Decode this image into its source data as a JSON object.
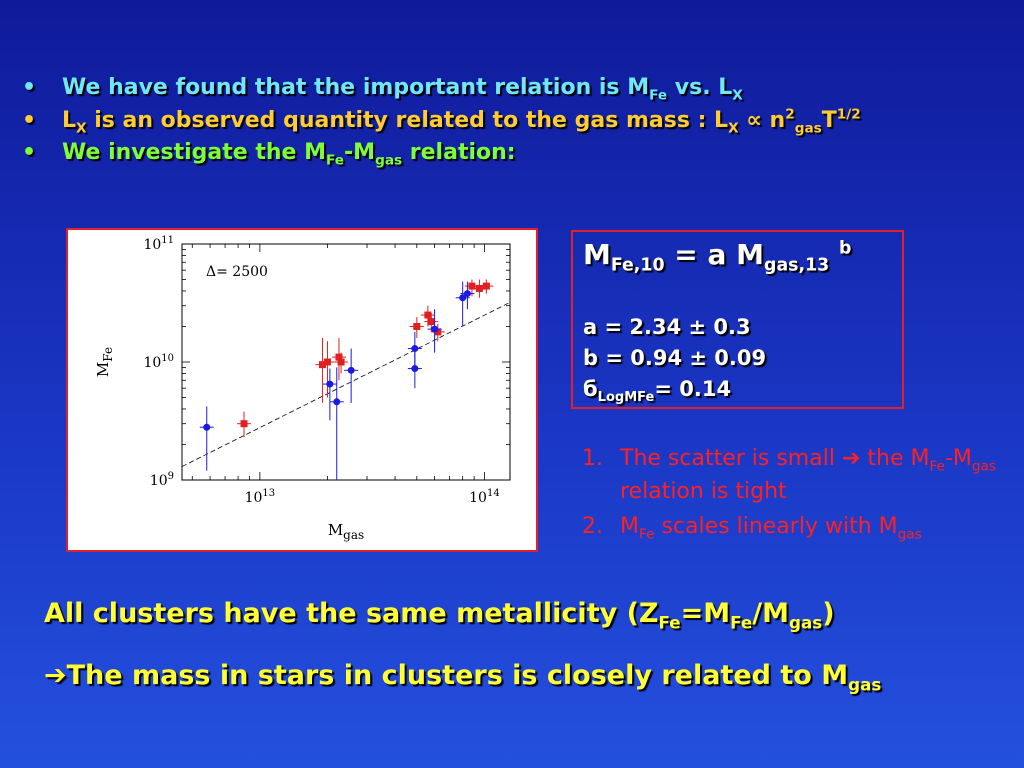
{
  "bullets": [
    {
      "text": "We have found that the important relation is  M",
      "sub": "Fe",
      "text2": " vs. L",
      "sub2": "X"
    },
    {
      "a": "L",
      "a_sub": "X",
      "b": " is an observed quantity related to the gas mass :  L",
      "b_sub": "X",
      "c": " ∝ n",
      "c_sup": "2",
      "c_sub": "gas",
      "d": "T",
      "d_sup": "1/2"
    },
    {
      "a": "We investigate the M",
      "a_sub": "Fe",
      "b": "-M",
      "b_sub": "gas",
      "c": " relation:"
    }
  ],
  "bullet_symbol": "•",
  "formula": {
    "lhs": "M",
    "lhs_sub": "Fe,10",
    "mid": " = a M",
    "mid_sub": "gas,13",
    "exp": "b"
  },
  "params": {
    "a": "a = 2.34 ± 0.3",
    "b": "b = 0.94 ± 0.09",
    "sigma": "б",
    "sigma_sub": "LogMFe",
    "sigma_val": "= 0.14"
  },
  "numbered": [
    {
      "num": "1.",
      "t1": "The scatter is small ",
      "arrow": "➔",
      "t2": " the M",
      "s1": "Fe",
      "t3": "-M",
      "s2": "gas",
      "t4": " relation is tight"
    },
    {
      "num": "2.",
      "t1": "M",
      "s1": "Fe",
      "t2": " scales linearly with M",
      "s2": "gas"
    }
  ],
  "conclusion": {
    "line1": {
      "a": "All clusters have the same metallicity (Z",
      "s1": "Fe",
      "b": "=M",
      "s2": "Fe",
      "c": "/M",
      "s3": "gas",
      "d": ")"
    },
    "line2": {
      "arrow": "➔",
      "a": "The mass in stars in clusters is closely related to M",
      "s1": "gas"
    }
  },
  "colors": {
    "red_points": "#e02020",
    "blue_points": "#1a1ae0",
    "border": "#e0202a"
  },
  "chart_data": {
    "type": "scatter",
    "annotation": "Δ=  2500",
    "xlabel": "M",
    "xlabel_sub": "gas",
    "ylabel": "M",
    "ylabel_sub": "Fe",
    "x_scale": "log",
    "y_scale": "log",
    "xlim": [
      4500000000000.0,
      130000000000000.0
    ],
    "ylim": [
      1000000000.0,
      100000000000.0
    ],
    "x_ticks": [
      {
        "base": "10",
        "exp": "13",
        "value": 10000000000000.0
      },
      {
        "base": "10",
        "exp": "14",
        "value": 100000000000000.0
      }
    ],
    "y_ticks": [
      {
        "base": "10",
        "exp": "9",
        "value": 1000000000.0
      },
      {
        "base": "10",
        "exp": "10",
        "value": 10000000000.0
      },
      {
        "base": "10",
        "exp": "11",
        "value": 100000000000.0
      }
    ],
    "fit_line": {
      "x": [
        4500000000000.0,
        130000000000000.0
      ],
      "y": [
        1300000000.0,
        32000000000.0
      ]
    },
    "series": [
      {
        "color": "red",
        "points": [
          {
            "x": 8500000000000.0,
            "y": 3000000000.0,
            "ylo": 2300000000.0,
            "yhi": 3800000000.0
          },
          {
            "x": 19000000000000.0,
            "y": 9500000000.0,
            "ylo": 4500000000.0,
            "yhi": 16000000000.0
          },
          {
            "x": 20000000000000.0,
            "y": 10000000000.0,
            "ylo": 5000000000.0,
            "yhi": 15000000000.0
          },
          {
            "x": 22500000000000.0,
            "y": 11000000000.0,
            "ylo": 7000000000.0,
            "yhi": 16000000000.0
          },
          {
            "x": 23000000000000.0,
            "y": 10000000000.0,
            "ylo": 8000000000.0,
            "yhi": 12000000000.0
          },
          {
            "x": 50000000000000.0,
            "y": 20000000000.0,
            "ylo": 16000000000.0,
            "yhi": 24000000000.0
          },
          {
            "x": 56000000000000.0,
            "y": 25000000000.0,
            "ylo": 20000000000.0,
            "yhi": 30000000000.0
          },
          {
            "x": 58000000000000.0,
            "y": 22000000000.0,
            "ylo": 18000000000.0,
            "yhi": 26000000000.0
          },
          {
            "x": 62000000000000.0,
            "y": 18000000000.0,
            "ylo": 15000000000.0,
            "yhi": 21000000000.0
          },
          {
            "x": 88000000000000.0,
            "y": 44000000000.0,
            "ylo": 36000000000.0,
            "yhi": 50000000000.0
          },
          {
            "x": 95000000000000.0,
            "y": 42000000000.0,
            "ylo": 35000000000.0,
            "yhi": 50000000000.0
          },
          {
            "x": 102000000000000.0,
            "y": 44000000000.0,
            "ylo": 38000000000.0,
            "yhi": 50000000000.0
          }
        ]
      },
      {
        "color": "blue",
        "points": [
          {
            "x": 5800000000000.0,
            "y": 2800000000.0,
            "ylo": 1200000000.0,
            "yhi": 4200000000.0
          },
          {
            "x": 20500000000000.0,
            "y": 6500000000.0,
            "ylo": 3200000000.0,
            "yhi": 8800000000.0
          },
          {
            "x": 22000000000000.0,
            "y": 4600000000.0,
            "ylo": 1000000000.0,
            "yhi": 9000000000.0
          },
          {
            "x": 25500000000000.0,
            "y": 8500000000.0,
            "ylo": 4500000000.0,
            "yhi": 13000000000.0
          },
          {
            "x": 49000000000000.0,
            "y": 13000000000.0,
            "ylo": 9000000000.0,
            "yhi": 18000000000.0
          },
          {
            "x": 49000000000000.0,
            "y": 8800000000.0,
            "ylo": 6000000000.0,
            "yhi": 13000000000.0
          },
          {
            "x": 60000000000000.0,
            "y": 19000000000.0,
            "ylo": 12000000000.0,
            "yhi": 28000000000.0
          },
          {
            "x": 80000000000000.0,
            "y": 35000000000.0,
            "ylo": 20000000000.0,
            "yhi": 48000000000.0
          },
          {
            "x": 84000000000000.0,
            "y": 38000000000.0,
            "ylo": 28000000000.0,
            "yhi": 48000000000.0
          }
        ]
      }
    ]
  }
}
